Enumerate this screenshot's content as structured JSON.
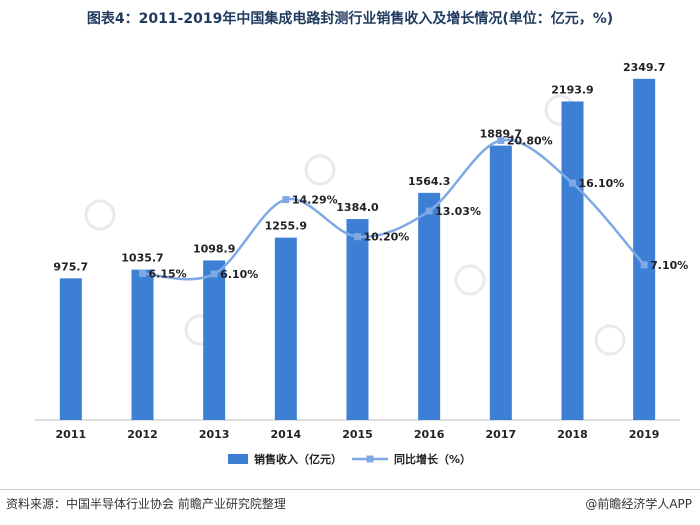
{
  "title": "图表4：2011-2019年中国集成电路封测行业销售收入及增长情况(单位：亿元，%)",
  "source": "资料来源：中国半导体行业协会 前瞻产业研究院整理",
  "brand": "@前瞻经济学人APP",
  "watermark": "前瞻产业研究院",
  "colors": {
    "bar": "#3e7fd6",
    "line": "#7fa9e4",
    "text": "#222222"
  },
  "chart_data": {
    "type": "bar+line",
    "categories": [
      "2011",
      "2012",
      "2013",
      "2014",
      "2015",
      "2016",
      "2017",
      "2018",
      "2019"
    ],
    "bar_labels": [
      "975.7",
      "1035.7",
      "1098.9",
      "1255.9",
      "1384.0",
      "1564.3",
      "1889.7",
      "2193.9",
      "2349.7"
    ],
    "line_labels": [
      "",
      "6.15%",
      "6.10%",
      "14.29%",
      "10.20%",
      "13.03%",
      "20.80%",
      "16.10%",
      "7.10%"
    ],
    "series": [
      {
        "name": "销售收入（亿元）",
        "type": "bar",
        "values": [
          975.7,
          1035.7,
          1098.9,
          1255.9,
          1384.0,
          1564.3,
          1889.7,
          2193.9,
          2349.7
        ]
      },
      {
        "name": "同比增长（%）",
        "type": "line",
        "values": [
          null,
          6.15,
          6.1,
          14.29,
          10.2,
          13.03,
          20.8,
          16.1,
          7.1
        ]
      }
    ],
    "bar_ylim": [
      0,
      2500
    ],
    "line_ylim": [
      -10,
      30
    ],
    "grid": false,
    "legend": "bottom-center"
  }
}
